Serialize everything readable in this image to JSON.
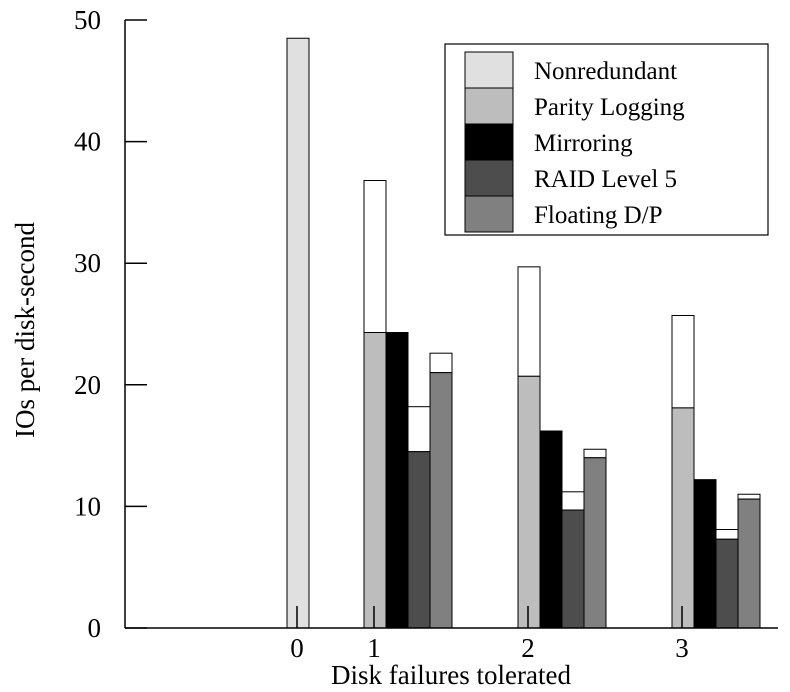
{
  "chart_data": {
    "type": "bar",
    "title": "",
    "xlabel": "Disk failures tolerated",
    "ylabel": "IOs per disk-second",
    "ylim": [
      0,
      50
    ],
    "yticks": [
      "0",
      "10",
      "20",
      "30",
      "40",
      "50"
    ],
    "categories": [
      "0",
      "1",
      "2",
      "3"
    ],
    "grid": false,
    "legend_position": "top-right",
    "legend": [
      {
        "name": "Nonredundant",
        "color": "#e0e0e0"
      },
      {
        "name": "Parity Logging",
        "color": "#bdbdbd"
      },
      {
        "name": "Mirroring",
        "color": "#000000"
      },
      {
        "name": "RAID Level 5",
        "color": "#4d4d4d"
      },
      {
        "name": "Floating D/P",
        "color": "#808080"
      }
    ],
    "open_segment_color": "#ffffff",
    "groups": [
      {
        "category": "0",
        "bars": [
          {
            "series": "Nonredundant",
            "value": 48.5,
            "total": 48.5
          }
        ]
      },
      {
        "category": "1",
        "bars": [
          {
            "series": "Parity Logging",
            "value": 24.3,
            "total": 36.8
          },
          {
            "series": "Mirroring",
            "value": 24.3,
            "total": 24.3
          },
          {
            "series": "RAID Level 5",
            "value": 14.5,
            "total": 18.2
          },
          {
            "series": "Floating D/P",
            "value": 21.0,
            "total": 22.6
          }
        ]
      },
      {
        "category": "2",
        "bars": [
          {
            "series": "Parity Logging",
            "value": 20.7,
            "total": 29.7
          },
          {
            "series": "Mirroring",
            "value": 16.2,
            "total": 16.2
          },
          {
            "series": "RAID Level 5",
            "value": 9.7,
            "total": 11.2
          },
          {
            "series": "Floating D/P",
            "value": 14.0,
            "total": 14.7
          }
        ]
      },
      {
        "category": "3",
        "bars": [
          {
            "series": "Parity Logging",
            "value": 18.1,
            "total": 25.7
          },
          {
            "series": "Mirroring",
            "value": 12.2,
            "total": 12.2
          },
          {
            "series": "RAID Level 5",
            "value": 7.3,
            "total": 8.1
          },
          {
            "series": "Floating D/P",
            "value": 10.6,
            "total": 11.0
          }
        ]
      }
    ]
  }
}
